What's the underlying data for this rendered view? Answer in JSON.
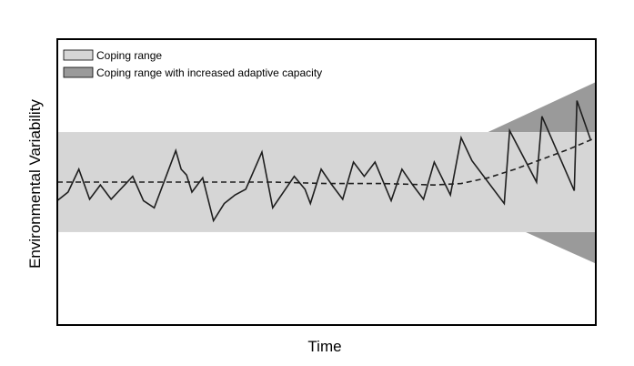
{
  "chart_data": {
    "type": "line",
    "title": "",
    "xlabel": "Time",
    "ylabel": "Environmental Variability",
    "grid": false,
    "legend_placement": "top-left",
    "xlim": [
      0,
      100
    ],
    "ylim": [
      -100,
      100
    ],
    "legend": [
      {
        "label": "Coping range",
        "color": "#d6d6d6"
      },
      {
        "label": "Coping range with increased adaptive capacity",
        "color": "#9a9a9a"
      }
    ],
    "coping_range": {
      "lower": -35,
      "upper": 35
    },
    "increased_capacity": {
      "upper": [
        [
          80,
          35
        ],
        [
          100,
          70
        ]
      ],
      "lower": [
        [
          87,
          -35
        ],
        [
          100,
          -57
        ]
      ]
    },
    "trend": [
      [
        0,
        0
      ],
      [
        10,
        0
      ],
      [
        20,
        0
      ],
      [
        30,
        0
      ],
      [
        40,
        0
      ],
      [
        50,
        -1
      ],
      [
        60,
        -1
      ],
      [
        70,
        -2
      ],
      [
        75,
        -1
      ],
      [
        80,
        3
      ],
      [
        85,
        9
      ],
      [
        90,
        16
      ],
      [
        95,
        23
      ],
      [
        100,
        31
      ]
    ],
    "variability": [
      [
        0,
        -13
      ],
      [
        2,
        -7
      ],
      [
        4,
        9
      ],
      [
        6,
        -12
      ],
      [
        8,
        -2
      ],
      [
        10,
        -12
      ],
      [
        14,
        4
      ],
      [
        16,
        -13
      ],
      [
        18,
        -18
      ],
      [
        22,
        22
      ],
      [
        23,
        9
      ],
      [
        24,
        5
      ],
      [
        25,
        -7
      ],
      [
        27,
        3
      ],
      [
        29,
        -27
      ],
      [
        31,
        -15
      ],
      [
        33,
        -9
      ],
      [
        35,
        -5
      ],
      [
        38,
        21
      ],
      [
        40,
        -18
      ],
      [
        44,
        4
      ],
      [
        46,
        -5
      ],
      [
        47,
        -15
      ],
      [
        49,
        9
      ],
      [
        51,
        -2
      ],
      [
        53,
        -12
      ],
      [
        55,
        14
      ],
      [
        57,
        4
      ],
      [
        59,
        14
      ],
      [
        62,
        -13
      ],
      [
        64,
        9
      ],
      [
        66,
        -2
      ],
      [
        68,
        -12
      ],
      [
        70,
        14
      ],
      [
        73,
        -9
      ],
      [
        75,
        31
      ],
      [
        77,
        15
      ],
      [
        83,
        -15
      ],
      [
        84,
        36
      ],
      [
        89,
        0
      ],
      [
        90,
        46
      ],
      [
        96,
        -6
      ],
      [
        96.5,
        57
      ],
      [
        99,
        30
      ]
    ],
    "colors": {
      "coping_range": "#d6d6d6",
      "increased_capacity": "#9a9a9a",
      "line": "#1e1e1e",
      "frame": "#000000"
    }
  }
}
